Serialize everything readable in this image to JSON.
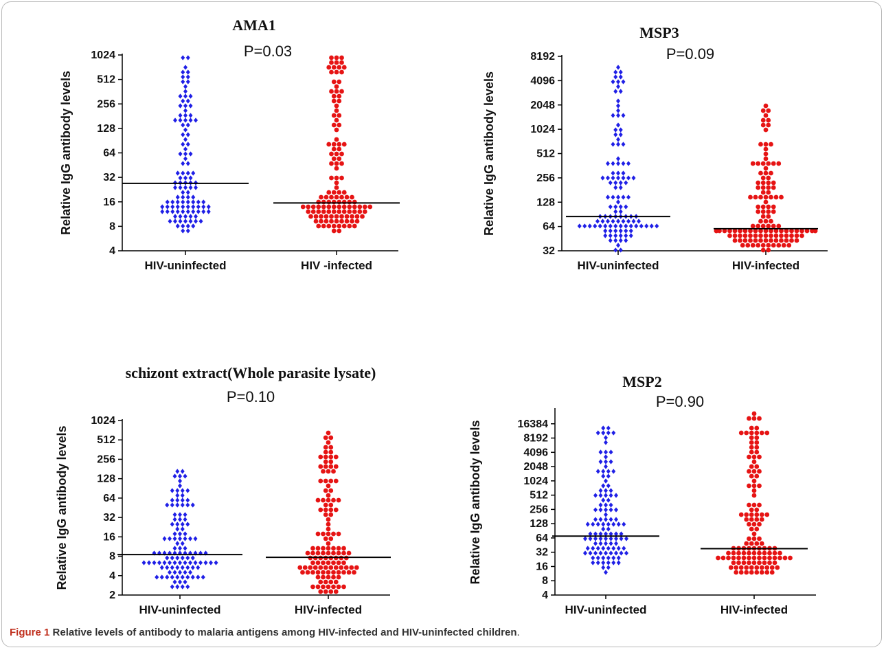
{
  "caption": {
    "label": "Figure 1",
    "text": "Relative levels of antibody to malaria antigens among HIV-infected and HIV-uninfected children"
  },
  "colors": {
    "uninfected": "#1f1fe6",
    "infected": "#e61414",
    "median": "#000000"
  },
  "chart_data": [
    {
      "type": "scatter",
      "title": "AMA1",
      "annotation": "P=0.03",
      "ylabel": "Relative IgG antibody levels",
      "yscale": "log2",
      "ylim": [
        4,
        1024
      ],
      "yticks": [
        4,
        8,
        16,
        32,
        64,
        128,
        256,
        512,
        1024
      ],
      "categories": [
        "HIV-uninfected",
        "HIV -infected"
      ],
      "series": [
        {
          "category": "HIV-uninfected",
          "median": 27,
          "n": 110,
          "min": 7,
          "max": 1000,
          "marker": "diamond"
        },
        {
          "category": "HIV -infected",
          "median": 15.5,
          "n": 125,
          "min": 7,
          "max": 950,
          "marker": "circle"
        }
      ]
    },
    {
      "type": "scatter",
      "title": "MSP3",
      "annotation": "P=0.09",
      "ylabel": "Relative IgG antibody levels",
      "yscale": "log2",
      "ylim": [
        32,
        8192
      ],
      "yticks": [
        32,
        64,
        128,
        256,
        512,
        1024,
        2048,
        4096,
        8192
      ],
      "categories": [
        "HIV-uninfected",
        "HIV-infected"
      ],
      "series": [
        {
          "category": "HIV-uninfected",
          "median": 85,
          "n": 110,
          "min": 34,
          "max": 6000,
          "marker": "diamond"
        },
        {
          "category": "HIV-infected",
          "median": 60,
          "n": 125,
          "min": 34,
          "max": 1900,
          "marker": "circle"
        }
      ]
    },
    {
      "type": "scatter",
      "title": "schizont extract(Whole parasite lysate)",
      "annotation": "P=0.10",
      "ylabel": "Relative IgG antibody levels",
      "yscale": "log2",
      "ylim": [
        2,
        1024
      ],
      "yticks": [
        2,
        4,
        8,
        16,
        32,
        64,
        128,
        256,
        512,
        1024
      ],
      "categories": [
        "HIV-uninfected",
        "HIV-infected"
      ],
      "series": [
        {
          "category": "HIV-uninfected",
          "median": 8.5,
          "n": 110,
          "min": 2.6,
          "max": 170,
          "marker": "diamond"
        },
        {
          "category": "HIV-infected",
          "median": 7.7,
          "n": 125,
          "min": 2.2,
          "max": 620,
          "marker": "circle"
        }
      ]
    },
    {
      "type": "scatter",
      "title": "MSP2",
      "annotation": "P=0.90",
      "ylabel": "Relative IgG antibody levels",
      "yscale": "log2",
      "ylim": [
        4,
        32768
      ],
      "yticks": [
        4,
        8,
        16,
        32,
        64,
        128,
        256,
        512,
        1024,
        2048,
        4096,
        8192,
        16384
      ],
      "categories": [
        "HIV-uninfected",
        "HIV-infected"
      ],
      "series": [
        {
          "category": "HIV-uninfected",
          "median": 70,
          "n": 110,
          "min": 11,
          "max": 14000,
          "marker": "diamond"
        },
        {
          "category": "HIV-infected",
          "median": 38,
          "n": 125,
          "min": 11,
          "max": 24000,
          "marker": "circle"
        }
      ]
    }
  ]
}
